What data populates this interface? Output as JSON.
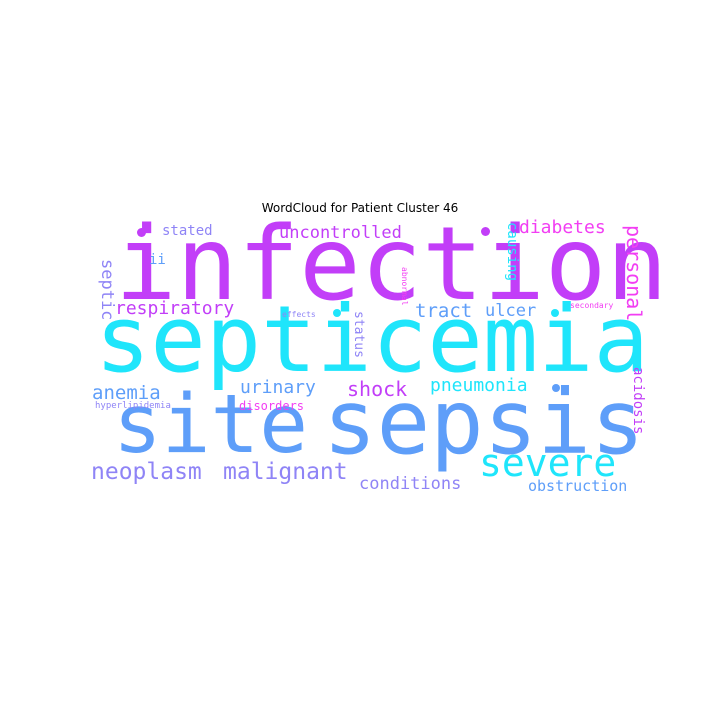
{
  "title": "WordCloud for Patient Cluster 46",
  "colors": {
    "cyan": "#1fe5fb",
    "purple": "#c23ef8",
    "blue": "#5e9ef9",
    "periwinkle": "#8f84f6",
    "magenta": "#f23ef3"
  },
  "words": {
    "infection": "infection",
    "septicemia": "septicemia",
    "site": "site",
    "sepsis": "sepsis",
    "severe": "severe",
    "neoplasm": "neoplasm",
    "malignant": "malignant",
    "conditions": "conditions",
    "obstruction": "obstruction",
    "anemia": "anemia",
    "urinary": "urinary",
    "shock": "shock",
    "pneumonia": "pneumonia",
    "respiratory": "respiratory",
    "tract": "tract",
    "ulcer": "ulcer",
    "uncontrolled": "uncontrolled",
    "stated": "stated",
    "diabetes": "diabetes",
    "personal": "personal",
    "septic": "septic",
    "ii": "ii",
    "causing": "causing",
    "status": "status",
    "acidosis": "acidosis",
    "disorders": "disorders",
    "hyperlipidemia": "hyperlipidemia",
    "abnormal": "abnormal",
    "effects": "effects",
    "secondary": "secondary"
  }
}
